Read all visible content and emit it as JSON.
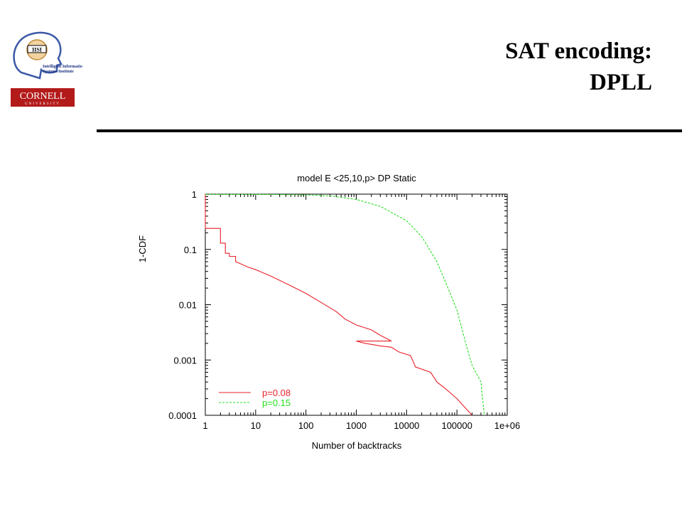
{
  "slide": {
    "title_line1": "SAT encoding:",
    "title_line2": "DPLL",
    "logo_text": "Intelligent Information Systems Institute",
    "logo_badge": "IISI",
    "cornell_text": "CORNELL",
    "cornell_sub": "UNIVERSITY"
  },
  "colors": {
    "red": "#e8212a",
    "green": "#22e01e",
    "rule": "#000000"
  },
  "chart_data": {
    "type": "line",
    "title": "model E <25,10,p> DP Static",
    "xlabel": "Number of backtracks",
    "ylabel": "1-CDF",
    "xscale": "log",
    "yscale": "log",
    "xlim": [
      1,
      1000000
    ],
    "ylim": [
      0.0001,
      1
    ],
    "x_ticks": [
      1,
      10,
      100,
      1000,
      10000,
      100000,
      1000000
    ],
    "x_tick_labels": [
      "1",
      "10",
      "100",
      "1000",
      "10000",
      "100000",
      "1e+06"
    ],
    "y_ticks": [
      1,
      0.1,
      0.01,
      0.001,
      0.0001
    ],
    "y_tick_labels": [
      "1",
      "0.1",
      "0.01",
      "0.001",
      "0.0001"
    ],
    "legend_position": "bottom-left",
    "series": [
      {
        "name": "p=0.08",
        "color": "#e8212a",
        "dash": "solid",
        "points": [
          [
            1,
            1
          ],
          [
            1,
            0.24
          ],
          [
            2,
            0.24
          ],
          [
            2,
            0.13
          ],
          [
            2.5,
            0.13
          ],
          [
            2.5,
            0.085
          ],
          [
            3,
            0.085
          ],
          [
            3,
            0.075
          ],
          [
            4,
            0.075
          ],
          [
            4,
            0.06
          ],
          [
            5,
            0.055
          ],
          [
            7,
            0.048
          ],
          [
            10,
            0.043
          ],
          [
            20,
            0.033
          ],
          [
            50,
            0.022
          ],
          [
            100,
            0.016
          ],
          [
            200,
            0.011
          ],
          [
            400,
            0.0075
          ],
          [
            600,
            0.0055
          ],
          [
            1000,
            0.0043
          ],
          [
            2000,
            0.0035
          ],
          [
            3000,
            0.0028
          ],
          [
            5000,
            0.0022
          ],
          [
            1000,
            0.0022
          ],
          [
            1500,
            0.002
          ],
          [
            3000,
            0.0018
          ],
          [
            5000,
            0.0017
          ],
          [
            7000,
            0.0014
          ],
          [
            12000,
            0.0012
          ],
          [
            15000,
            0.00075
          ],
          [
            30000,
            0.0006
          ],
          [
            40000,
            0.0004
          ],
          [
            60000,
            0.0003
          ],
          [
            100000,
            0.0002
          ],
          [
            200000,
            0.0001
          ]
        ],
        "note": ""
      },
      {
        "name": "p=0.15",
        "color": "#22e01e",
        "dash": "dashed",
        "points": [
          [
            1,
            0.99
          ],
          [
            10,
            0.99
          ],
          [
            100,
            0.97
          ],
          [
            300,
            0.93
          ],
          [
            1000,
            0.8
          ],
          [
            3000,
            0.6
          ],
          [
            10000,
            0.33
          ],
          [
            20000,
            0.17
          ],
          [
            40000,
            0.06
          ],
          [
            60000,
            0.025
          ],
          [
            100000,
            0.008
          ],
          [
            150000,
            0.002
          ],
          [
            200000,
            0.0008
          ],
          [
            300000,
            0.0004
          ],
          [
            350000,
            0.0001
          ]
        ]
      }
    ]
  }
}
